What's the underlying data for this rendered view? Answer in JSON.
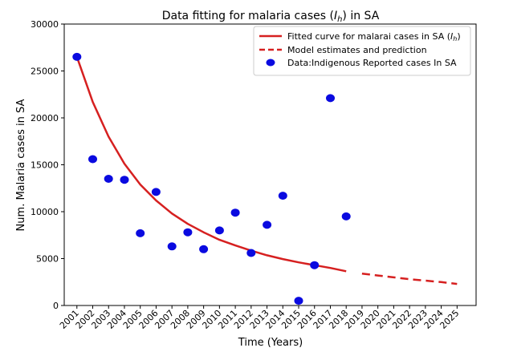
{
  "chart_data": {
    "type": "scatter",
    "title_main": "Data fitting for  malaria cases (",
    "title_var": "I",
    "title_sub": "h",
    "title_end": ") in SA",
    "xlabel": "Time (Years)",
    "ylabel": "Num. Malaria cases in SA",
    "xlim": [
      2000.2,
      2026.2
    ],
    "ylim": [
      0,
      30000
    ],
    "x_ticks": [
      "2001",
      "2002",
      "2003",
      "2004",
      "2005",
      "2006",
      "2007",
      "2008",
      "2009",
      "2010",
      "2011",
      "2012",
      "2013",
      "2014",
      "2015",
      "2016",
      "2017",
      "2018",
      "2019",
      "2020",
      "2021",
      "2022",
      "2023",
      "2024",
      "2025"
    ],
    "y_ticks": [
      0,
      5000,
      10000,
      15000,
      20000,
      25000,
      30000
    ],
    "legend_position": "top-right",
    "series": [
      {
        "name_main": "Fitted curve for malarai cases in SA (",
        "name_var": "I",
        "name_sub": "h",
        "name_end": ")",
        "kind": "line",
        "color": "#d62020",
        "style": "solid",
        "x": [
          2001,
          2002,
          2003,
          2004,
          2005,
          2006,
          2007,
          2008,
          2009,
          2010,
          2011,
          2012,
          2013,
          2014,
          2015,
          2016,
          2017,
          2018
        ],
        "y": [
          26500,
          21700,
          18000,
          15100,
          12900,
          11200,
          9800,
          8700,
          7800,
          7000,
          6400,
          5850,
          5350,
          4950,
          4600,
          4300,
          4000,
          3650
        ]
      },
      {
        "name": "Model estimates and prediction",
        "kind": "line",
        "color": "#d62020",
        "style": "dashed",
        "x": [
          2019,
          2020,
          2021,
          2022,
          2023,
          2024,
          2025
        ],
        "y": [
          3400,
          3200,
          3000,
          2800,
          2650,
          2500,
          2300
        ]
      },
      {
        "name": "Data:Indigenous Reported cases In SA",
        "kind": "scatter",
        "color": "#0a0ae0",
        "x": [
          2001,
          2002,
          2003,
          2004,
          2005,
          2006,
          2007,
          2008,
          2009,
          2010,
          2011,
          2012,
          2013,
          2014,
          2015,
          2016,
          2017,
          2018
        ],
        "y": [
          26500,
          15600,
          13500,
          13400,
          7700,
          12100,
          6300,
          7800,
          6000,
          8000,
          9900,
          5600,
          8600,
          11700,
          500,
          4300,
          22100,
          9500
        ]
      }
    ]
  }
}
